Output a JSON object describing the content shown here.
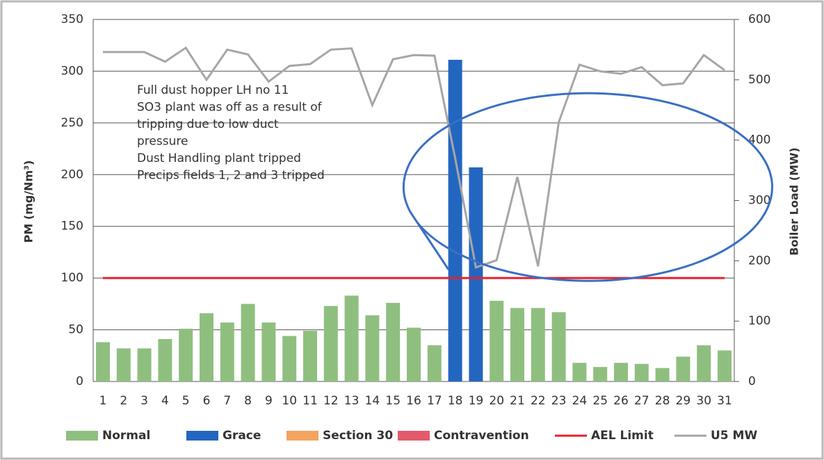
{
  "chart_data": {
    "type": "bar",
    "categories": [
      "1",
      "2",
      "3",
      "4",
      "5",
      "6",
      "7",
      "8",
      "9",
      "10",
      "11",
      "12",
      "13",
      "14",
      "15",
      "16",
      "17",
      "18",
      "19",
      "20",
      "21",
      "22",
      "23",
      "24",
      "25",
      "26",
      "27",
      "28",
      "29",
      "30",
      "31"
    ],
    "series": [
      {
        "name": "Normal",
        "mark": "bar",
        "color": "#8fbf7f",
        "values": [
          38,
          32,
          32,
          41,
          51,
          66,
          57,
          75,
          57,
          44,
          49,
          73,
          83,
          64,
          76,
          52,
          35,
          null,
          null,
          78,
          71,
          71,
          67,
          18,
          14,
          18,
          17,
          13,
          24,
          35,
          30
        ]
      },
      {
        "name": "Grace",
        "mark": "bar",
        "color": "#2366c0",
        "values": [
          null,
          null,
          null,
          null,
          null,
          null,
          null,
          null,
          null,
          null,
          null,
          null,
          null,
          null,
          null,
          null,
          null,
          311,
          207,
          null,
          null,
          null,
          null,
          null,
          null,
          null,
          null,
          null,
          null,
          null,
          null
        ]
      },
      {
        "name": "Section 30",
        "mark": "bar",
        "color": "#f4a460",
        "values": [
          null,
          null,
          null,
          null,
          null,
          null,
          null,
          null,
          null,
          null,
          null,
          null,
          null,
          null,
          null,
          null,
          null,
          null,
          null,
          null,
          null,
          null,
          null,
          null,
          null,
          null,
          null,
          null,
          null,
          null,
          null
        ]
      },
      {
        "name": "Contravention",
        "mark": "bar",
        "color": "#e35a6a",
        "values": [
          null,
          null,
          null,
          null,
          null,
          null,
          null,
          null,
          null,
          null,
          null,
          null,
          null,
          null,
          null,
          null,
          null,
          null,
          null,
          null,
          null,
          null,
          null,
          null,
          null,
          null,
          null,
          null,
          null,
          null,
          null
        ]
      },
      {
        "name": "AEL Limit",
        "mark": "line",
        "color": "#e8202a",
        "values": [
          100,
          100,
          100,
          100,
          100,
          100,
          100,
          100,
          100,
          100,
          100,
          100,
          100,
          100,
          100,
          100,
          100,
          100,
          100,
          100,
          100,
          100,
          100,
          100,
          100,
          100,
          100,
          100,
          100,
          100,
          100
        ]
      },
      {
        "name": "U5 MW",
        "mark": "line",
        "axis": "y2",
        "color": "#a6a6a6",
        "values": [
          546,
          546,
          546,
          530,
          553,
          500,
          550,
          542,
          497,
          523,
          526,
          550,
          552,
          458,
          534,
          541,
          540,
          370,
          189,
          201,
          339,
          191,
          430,
          525,
          514,
          510,
          521,
          491,
          494,
          541,
          516
        ]
      }
    ],
    "ylabel": "PM (mg/Nm³)",
    "y2label": "Boiler Load (MW)",
    "ylim": [
      0,
      350
    ],
    "yticks": [
      0,
      50,
      100,
      150,
      200,
      250,
      300,
      350
    ],
    "y2lim": [
      0,
      600
    ],
    "y2ticks": [
      0,
      100,
      200,
      300,
      400,
      500,
      600
    ],
    "grid": true,
    "legend": "bottom",
    "annotation": [
      "Full dust hopper LH no 11",
      "SO3 plant was off as a result of",
      "tripping due to low duct",
      "pressure",
      "Dust Handling plant tripped",
      "Precips fields 1, 2 and 3 tripped"
    ]
  }
}
